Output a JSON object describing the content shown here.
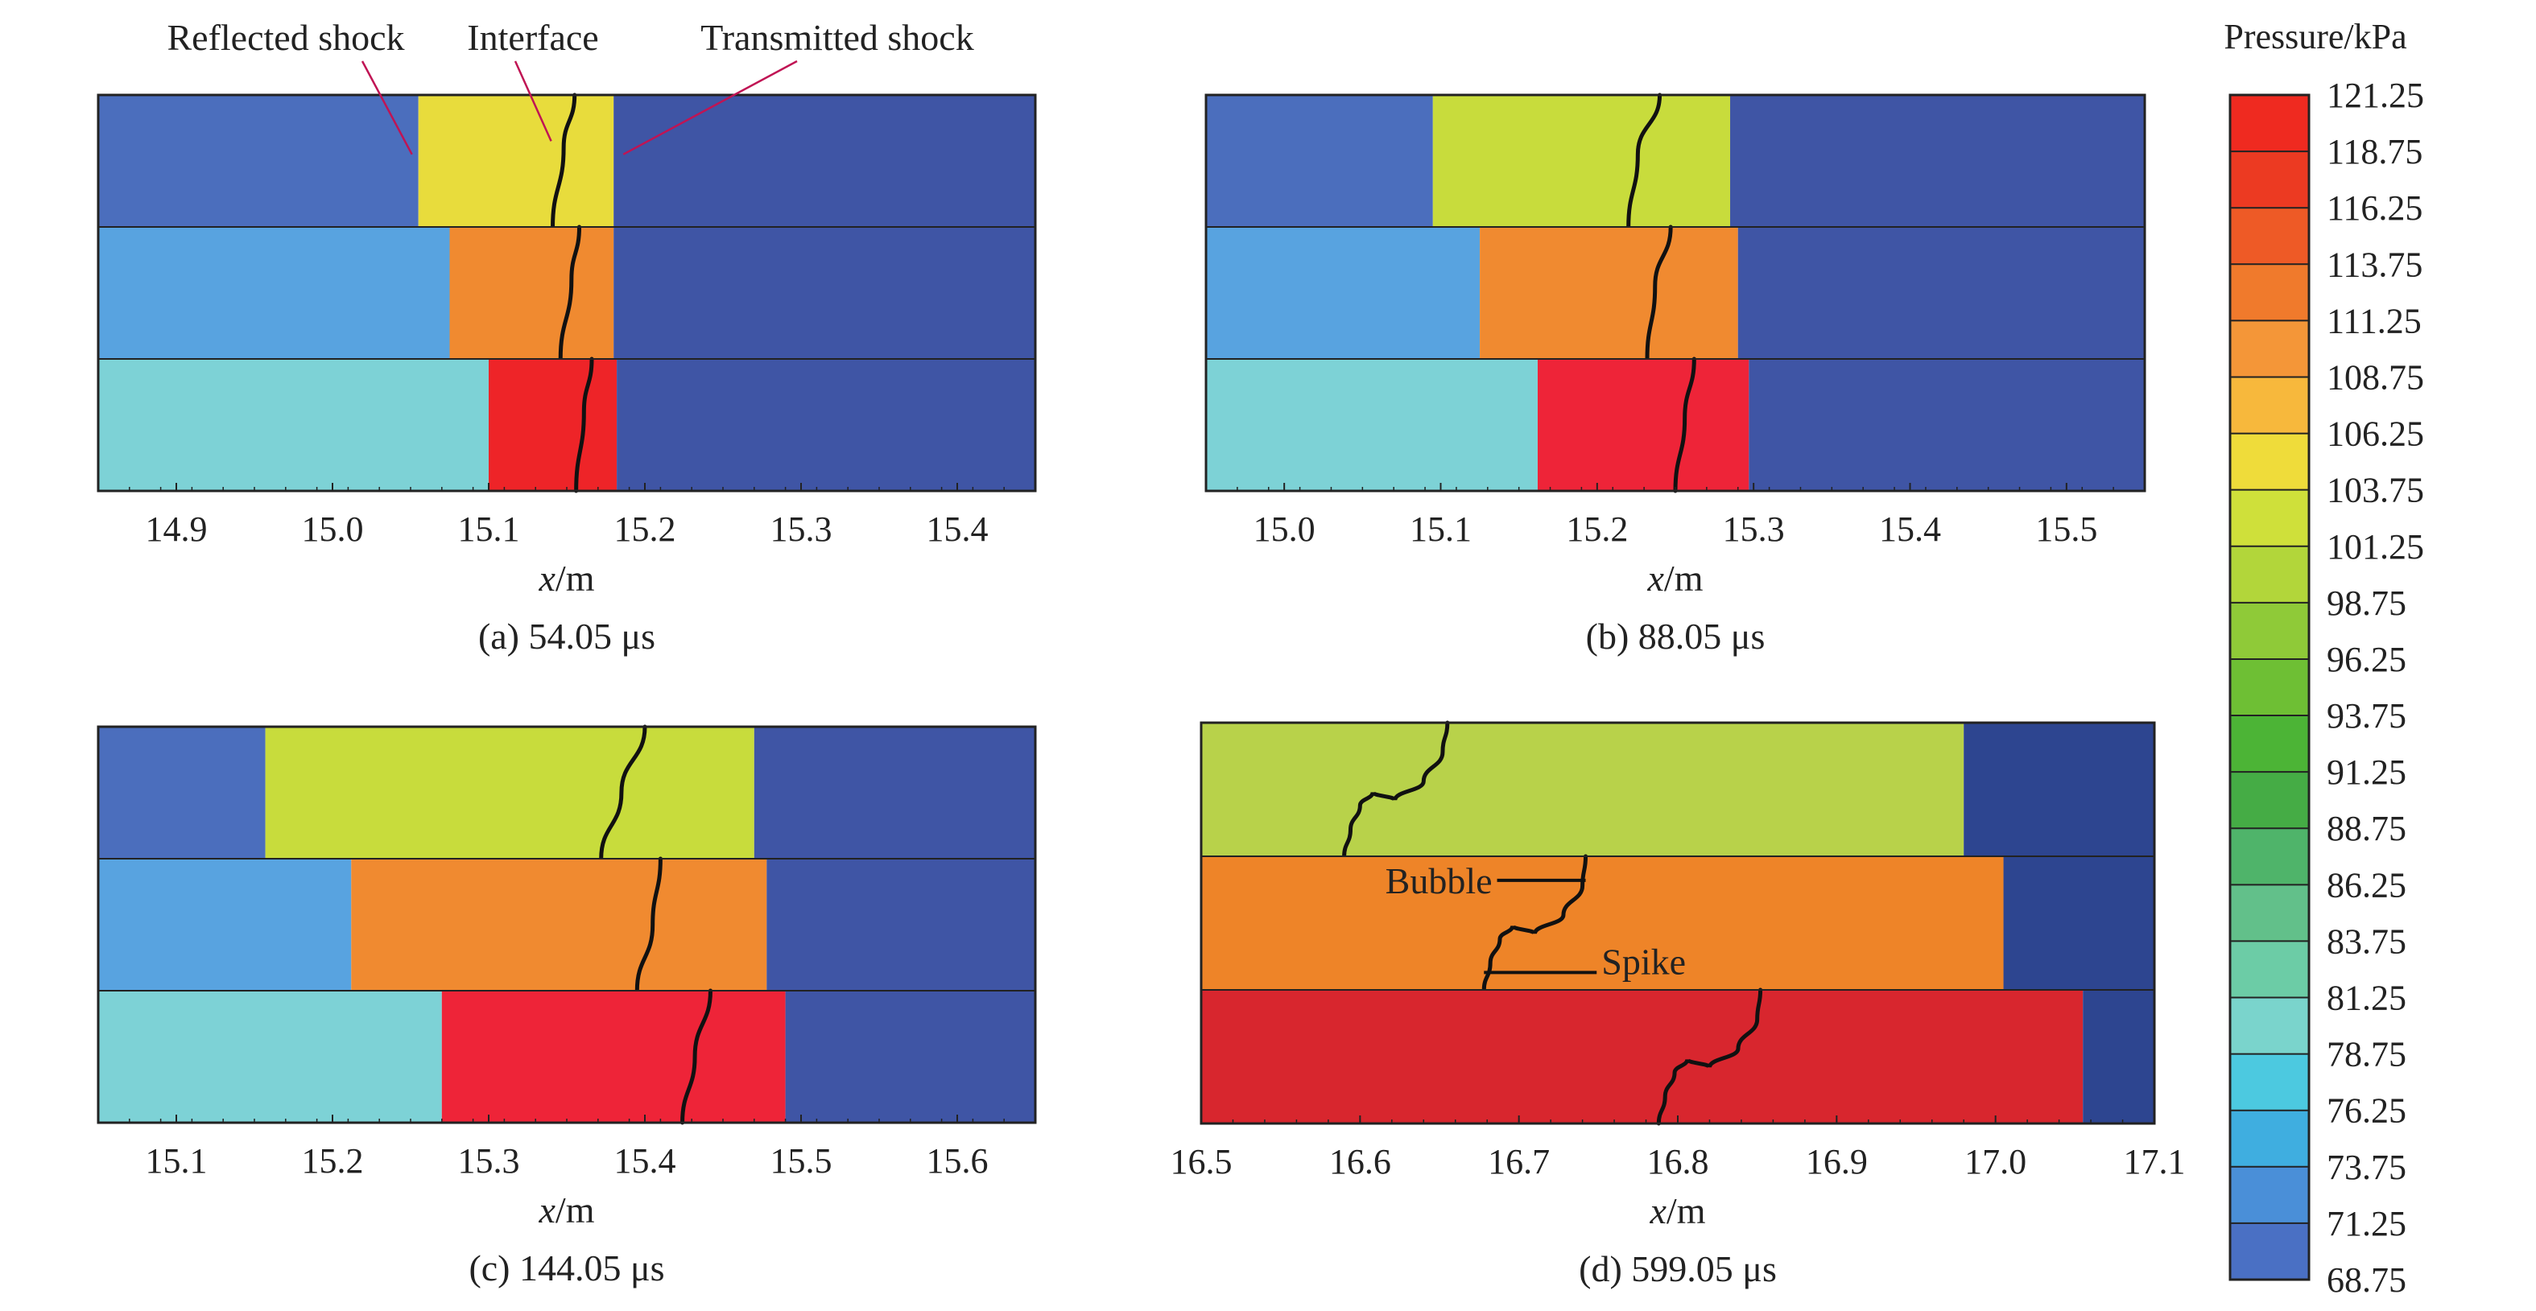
{
  "chart_data": {
    "type": "heatmap",
    "colorbar": {
      "title": "Pressure/kPa",
      "levels": [
        "121.25",
        "118.75",
        "116.25",
        "113.75",
        "111.25",
        "108.75",
        "106.25",
        "103.75",
        "101.25",
        "98.75",
        "96.25",
        "93.75",
        "91.25",
        "88.75",
        "86.25",
        "83.75",
        "81.25",
        "78.75",
        "76.25",
        "73.75",
        "71.25",
        "68.75"
      ],
      "colors": [
        "#ef2a20",
        "#ec3a22",
        "#ee5a26",
        "#f07a2c",
        "#f49638",
        "#f7b83c",
        "#efdc3a",
        "#cfe03a",
        "#b2d63a",
        "#8fca38",
        "#6ebf34",
        "#4cb436",
        "#45ac45",
        "#4fb46a",
        "#62c08a",
        "#6ccca6",
        "#7ad4cc",
        "#4cc9e0",
        "#3faee0",
        "#4a8fd8",
        "#4a70c4",
        "#3a52a8"
      ],
      "min": 68.75,
      "max": 121.25
    },
    "panels": [
      {
        "id": "a",
        "caption": "(a) 54.05 μs",
        "xlabel_var": "x",
        "xlabel_unit": "/m",
        "xlim": [
          14.85,
          15.45
        ],
        "xticks": [
          "14.9",
          "15.0",
          "15.1",
          "15.2",
          "15.3",
          "15.4"
        ],
        "bands": [
          {
            "zones": [
              {
                "x0": 14.85,
                "x1": 15.055,
                "color": "#4b6ebd"
              },
              {
                "x0": 15.055,
                "x1": 15.18,
                "color": "#e8dc3c"
              },
              {
                "x0": 15.18,
                "x1": 15.45,
                "color": "#3f55a5"
              }
            ],
            "interface": [
              {
                "x": 15.155,
                "t": 0
              },
              {
                "x": 15.148,
                "t": 0.4
              },
              {
                "x": 15.141,
                "t": 1
              }
            ]
          },
          {
            "zones": [
              {
                "x0": 14.85,
                "x1": 15.075,
                "color": "#58a3e0"
              },
              {
                "x0": 15.075,
                "x1": 15.18,
                "color": "#f08a30"
              },
              {
                "x0": 15.18,
                "x1": 15.45,
                "color": "#3f55a5"
              }
            ],
            "interface": [
              {
                "x": 15.158,
                "t": 0
              },
              {
                "x": 15.153,
                "t": 0.4
              },
              {
                "x": 15.146,
                "t": 1
              }
            ]
          },
          {
            "zones": [
              {
                "x0": 14.85,
                "x1": 15.1,
                "color": "#7dd2d6"
              },
              {
                "x0": 15.1,
                "x1": 15.182,
                "color": "#ee2428"
              },
              {
                "x0": 15.182,
                "x1": 15.45,
                "color": "#3f55a5"
              }
            ],
            "interface": [
              {
                "x": 15.166,
                "t": 0
              },
              {
                "x": 15.161,
                "t": 0.4
              },
              {
                "x": 15.156,
                "t": 1
              }
            ]
          }
        ],
        "annotations": [
          {
            "text": "Reflected shock",
            "x": 15.055,
            "band": 0.45
          },
          {
            "text": "Interface",
            "x": 15.14,
            "band": 0.35
          },
          {
            "text": "Transmitted shock",
            "x": 15.18,
            "band": 0.45
          }
        ]
      },
      {
        "id": "b",
        "caption": "(b) 88.05 μs",
        "xlabel_var": "x",
        "xlabel_unit": "/m",
        "xlim": [
          14.95,
          15.55
        ],
        "xticks": [
          "15.0",
          "15.1",
          "15.2",
          "15.3",
          "15.4",
          "15.5"
        ],
        "bands": [
          {
            "zones": [
              {
                "x0": 14.95,
                "x1": 15.095,
                "color": "#4b6ebd"
              },
              {
                "x0": 15.095,
                "x1": 15.285,
                "color": "#c8dc3c"
              },
              {
                "x0": 15.285,
                "x1": 15.55,
                "color": "#3f55a5"
              }
            ],
            "interface": [
              {
                "x": 15.24,
                "t": 0
              },
              {
                "x": 15.226,
                "t": 0.45
              },
              {
                "x": 15.22,
                "t": 1
              }
            ]
          },
          {
            "zones": [
              {
                "x0": 14.95,
                "x1": 15.125,
                "color": "#58a3e0"
              },
              {
                "x0": 15.125,
                "x1": 15.29,
                "color": "#f08a30"
              },
              {
                "x0": 15.29,
                "x1": 15.55,
                "color": "#3f55a5"
              }
            ],
            "interface": [
              {
                "x": 15.247,
                "t": 0
              },
              {
                "x": 15.237,
                "t": 0.45
              },
              {
                "x": 15.232,
                "t": 1
              }
            ]
          },
          {
            "zones": [
              {
                "x0": 14.95,
                "x1": 15.162,
                "color": "#7dd2d6"
              },
              {
                "x0": 15.162,
                "x1": 15.297,
                "color": "#ee2438"
              },
              {
                "x0": 15.297,
                "x1": 15.55,
                "color": "#3f55a5"
              }
            ],
            "interface": [
              {
                "x": 15.262,
                "t": 0
              },
              {
                "x": 15.256,
                "t": 0.45
              },
              {
                "x": 15.25,
                "t": 1
              }
            ]
          }
        ],
        "annotations": []
      },
      {
        "id": "c",
        "caption": "(c) 144.05 μs",
        "xlabel_var": "x",
        "xlabel_unit": "/m",
        "xlim": [
          15.05,
          15.65
        ],
        "xticks": [
          "15.1",
          "15.2",
          "15.3",
          "15.4",
          "15.5",
          "15.6"
        ],
        "bands": [
          {
            "zones": [
              {
                "x0": 15.05,
                "x1": 15.157,
                "color": "#4b6ebd"
              },
              {
                "x0": 15.157,
                "x1": 15.47,
                "color": "#c8dc3c"
              },
              {
                "x0": 15.47,
                "x1": 15.65,
                "color": "#3f55a5"
              }
            ],
            "interface": [
              {
                "x": 15.4,
                "t": 0
              },
              {
                "x": 15.385,
                "t": 0.5
              },
              {
                "x": 15.372,
                "t": 1
              }
            ]
          },
          {
            "zones": [
              {
                "x0": 15.05,
                "x1": 15.212,
                "color": "#58a3e0"
              },
              {
                "x0": 15.212,
                "x1": 15.478,
                "color": "#f08a30"
              },
              {
                "x0": 15.478,
                "x1": 15.65,
                "color": "#3f55a5"
              }
            ],
            "interface": [
              {
                "x": 15.41,
                "t": 0
              },
              {
                "x": 15.405,
                "t": 0.5
              },
              {
                "x": 15.395,
                "t": 1
              }
            ]
          },
          {
            "zones": [
              {
                "x0": 15.05,
                "x1": 15.27,
                "color": "#7dd2d6"
              },
              {
                "x0": 15.27,
                "x1": 15.49,
                "color": "#ee2438"
              },
              {
                "x0": 15.49,
                "x1": 15.65,
                "color": "#3f55a5"
              }
            ],
            "interface": [
              {
                "x": 15.442,
                "t": 0
              },
              {
                "x": 15.432,
                "t": 0.5
              },
              {
                "x": 15.424,
                "t": 1
              }
            ]
          }
        ],
        "annotations": []
      },
      {
        "id": "d",
        "caption": "(d) 599.05 μs",
        "xlabel_var": "x",
        "xlabel_unit": "/m",
        "xlim": [
          16.5,
          17.1
        ],
        "xticks": [
          "16.5",
          "16.6",
          "16.7",
          "16.8",
          "16.9",
          "17.0",
          "17.1"
        ],
        "bands": [
          {
            "zones": [
              {
                "x0": 16.5,
                "x1": 16.98,
                "color": "#b8d24a"
              },
              {
                "x0": 16.98,
                "x1": 17.1,
                "color": "#2d4590"
              }
            ],
            "interface": [
              {
                "x": 16.655,
                "t": 0
              },
              {
                "x": 16.652,
                "t": 0.22
              },
              {
                "x": 16.64,
                "t": 0.44
              },
              {
                "x": 16.622,
                "t": 0.58
              },
              {
                "x": 16.608,
                "t": 0.52
              },
              {
                "x": 16.6,
                "t": 0.62
              },
              {
                "x": 16.594,
                "t": 0.8
              },
              {
                "x": 16.59,
                "t": 1
              }
            ]
          },
          {
            "zones": [
              {
                "x0": 16.5,
                "x1": 17.005,
                "color": "#ee8428"
              },
              {
                "x0": 17.005,
                "x1": 17.1,
                "color": "#2d4590"
              }
            ],
            "interface": [
              {
                "x": 16.742,
                "t": 0
              },
              {
                "x": 16.74,
                "t": 0.22
              },
              {
                "x": 16.728,
                "t": 0.44
              },
              {
                "x": 16.71,
                "t": 0.58
              },
              {
                "x": 16.696,
                "t": 0.52
              },
              {
                "x": 16.688,
                "t": 0.62
              },
              {
                "x": 16.682,
                "t": 0.8
              },
              {
                "x": 16.678,
                "t": 1
              }
            ]
          },
          {
            "zones": [
              {
                "x0": 16.5,
                "x1": 17.055,
                "color": "#d8262e"
              },
              {
                "x0": 17.055,
                "x1": 17.1,
                "color": "#2d4590"
              }
            ],
            "interface": [
              {
                "x": 16.852,
                "t": 0
              },
              {
                "x": 16.85,
                "t": 0.22
              },
              {
                "x": 16.838,
                "t": 0.44
              },
              {
                "x": 16.82,
                "t": 0.58
              },
              {
                "x": 16.806,
                "t": 0.52
              },
              {
                "x": 16.798,
                "t": 0.62
              },
              {
                "x": 16.792,
                "t": 0.8
              },
              {
                "x": 16.788,
                "t": 1
              }
            ]
          }
        ],
        "annotations": [
          {
            "text": "Bubble",
            "x": 16.742,
            "band": 1.18
          },
          {
            "text": "Spike",
            "x": 16.678,
            "band": 1.87
          }
        ]
      }
    ]
  }
}
